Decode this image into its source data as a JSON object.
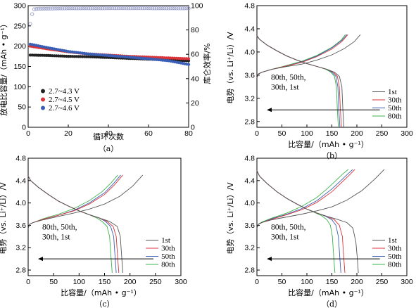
{
  "figure": {
    "panels": [
      {
        "id": "a",
        "caption": "（a）",
        "xlabel": "循环次数",
        "ylabel": "放电比容量/（mAh • g⁻¹）",
        "y2label": "库仑效率/%",
        "xticks": [
          "0",
          "20",
          "40",
          "60",
          "80"
        ],
        "yticks": [
          "0",
          "50",
          "100",
          "150",
          "200",
          "250",
          "300"
        ],
        "y2ticks": [
          "0",
          "20",
          "40",
          "60",
          "80",
          "100"
        ],
        "legend": [
          {
            "label": "2.7~4.3 V",
            "color": "#222222"
          },
          {
            "label": "2.7~4.5 V",
            "color": "#d9353b"
          },
          {
            "label": "2.7~4.6 V",
            "color": "#3a5fb5"
          }
        ]
      },
      {
        "id": "b",
        "caption": "（b）",
        "xlabel": "比容量/（mAh • g⁻¹）",
        "ylabel": "电势（vs. Li⁺/Li）/V",
        "xticks": [
          "0",
          "50",
          "100",
          "150",
          "200",
          "250",
          "300"
        ],
        "yticks": [
          "2.8",
          "3.2",
          "3.6",
          "4.0",
          "4.4",
          "4.8"
        ],
        "annotation": [
          "80th, 50th,",
          "30th, 1st"
        ],
        "legend": [
          "1st",
          "30th",
          "50th",
          "80th"
        ]
      },
      {
        "id": "c",
        "caption": "（c）",
        "xlabel": "比容量/（mAh • g⁻¹）",
        "ylabel": "电势（vs. Li⁺/Li）/V",
        "xticks": [
          "0",
          "50",
          "100",
          "150",
          "200",
          "250",
          "300"
        ],
        "yticks": [
          "2.8",
          "3.2",
          "3.6",
          "4.0",
          "4.4",
          "4.8"
        ],
        "annotation": [
          "80th, 50th,",
          "30th, 1st"
        ],
        "legend": [
          "1st",
          "30th",
          "50th",
          "80th"
        ]
      },
      {
        "id": "d",
        "caption": "（d）",
        "xlabel": "比容量/（mAh • g⁻¹）",
        "ylabel": "电势（vs. Li⁺/Li）/V",
        "xticks": [
          "0",
          "50",
          "100",
          "150",
          "200",
          "250",
          "300"
        ],
        "yticks": [
          "2.8",
          "3.2",
          "3.6",
          "4.0",
          "4.4",
          "4.8"
        ],
        "annotation": [
          "80th, 50th,",
          "30th, 1st"
        ],
        "legend": [
          "1st",
          "30th",
          "50th",
          "80th"
        ]
      }
    ]
  },
  "chart_data": [
    {
      "type": "scatter",
      "panel": "a",
      "xlim": [
        0,
        80
      ],
      "ylim": [
        0,
        300
      ],
      "y2lim": [
        0,
        100
      ],
      "series": [
        {
          "name": "2.7~4.3 V",
          "axis": "left",
          "color": "#222222",
          "x": [
            1,
            10,
            20,
            30,
            40,
            50,
            60,
            70,
            80
          ],
          "y": [
            178,
            177,
            175,
            174,
            172,
            170,
            168,
            166,
            164
          ]
        },
        {
          "name": "2.7~4.5 V",
          "axis": "left",
          "color": "#d9353b",
          "x": [
            1,
            10,
            20,
            30,
            40,
            50,
            60,
            70,
            80
          ],
          "y": [
            200,
            193,
            186,
            181,
            178,
            175,
            173,
            171,
            169
          ]
        },
        {
          "name": "2.7~4.6 V",
          "axis": "left",
          "color": "#3a5fb5",
          "x": [
            1,
            10,
            20,
            30,
            40,
            50,
            60,
            70,
            80
          ],
          "y": [
            205,
            196,
            187,
            181,
            177,
            173,
            169,
            164,
            155
          ]
        },
        {
          "axis": "right",
          "color": "#9aa0c8",
          "x": [
            1,
            2,
            3,
            5,
            10,
            20,
            40,
            60,
            80
          ],
          "y": [
            85,
            93,
            97,
            97.5,
            97.6,
            97.8,
            97.9,
            97.9,
            97.8
          ]
        }
      ]
    },
    {
      "type": "line",
      "panel": "b",
      "xlim": [
        0,
        300
      ],
      "ylim": [
        2.7,
        4.8
      ],
      "series": [
        {
          "name": "1st",
          "color": "#555555",
          "charge": {
            "x": [
              0,
              3,
              10,
              30,
              60,
              90,
              120,
              150,
              175,
              195,
              207
            ],
            "y": [
              3.55,
              3.62,
              3.65,
              3.7,
              3.75,
              3.79,
              3.86,
              3.95,
              4.06,
              4.18,
              4.3
            ]
          },
          "discharge": {
            "x": [
              0,
              5,
              20,
              40,
              60,
              80,
              100,
              120,
              140,
              155,
              165,
              170,
              172,
              174
            ],
            "y": [
              4.28,
              4.22,
              4.12,
              4.02,
              3.93,
              3.86,
              3.8,
              3.75,
              3.7,
              3.65,
              3.58,
              3.4,
              3.0,
              2.7
            ]
          }
        },
        {
          "name": "30th",
          "color": "#d9353b",
          "charge": {
            "x": [
              0,
              3,
              10,
              30,
              60,
              90,
              120,
              150,
              170,
              182
            ],
            "y": [
              3.55,
              3.62,
              3.65,
              3.7,
              3.76,
              3.82,
              3.92,
              4.05,
              4.18,
              4.3
            ]
          },
          "discharge": {
            "x": [
              0,
              5,
              20,
              40,
              60,
              80,
              100,
              120,
              140,
              153,
              161,
              165,
              167,
              169
            ],
            "y": [
              4.28,
              4.22,
              4.12,
              4.02,
              3.93,
              3.86,
              3.8,
              3.75,
              3.7,
              3.65,
              3.58,
              3.4,
              3.0,
              2.7
            ]
          }
        },
        {
          "name": "50th",
          "color": "#3a5fb5",
          "charge": {
            "x": [
              0,
              3,
              10,
              30,
              60,
              90,
              120,
              150,
              170,
              180
            ],
            "y": [
              3.55,
              3.62,
              3.65,
              3.7,
              3.76,
              3.83,
              3.93,
              4.07,
              4.2,
              4.3
            ]
          },
          "discharge": {
            "x": [
              0,
              5,
              20,
              40,
              60,
              80,
              100,
              120,
              140,
              150,
              158,
              162,
              164,
              166
            ],
            "y": [
              4.28,
              4.22,
              4.12,
              4.02,
              3.93,
              3.86,
              3.8,
              3.75,
              3.7,
              3.65,
              3.58,
              3.4,
              3.0,
              2.7
            ]
          }
        },
        {
          "name": "80th",
          "color": "#3cb44a",
          "charge": {
            "x": [
              0,
              3,
              10,
              30,
              60,
              90,
              120,
              150,
              168,
              177
            ],
            "y": [
              3.55,
              3.62,
              3.65,
              3.7,
              3.77,
              3.84,
              3.94,
              4.08,
              4.2,
              4.3
            ]
          },
          "discharge": {
            "x": [
              0,
              5,
              20,
              40,
              60,
              80,
              100,
              120,
              138,
              148,
              155,
              159,
              161,
              163
            ],
            "y": [
              4.28,
              4.22,
              4.12,
              4.02,
              3.93,
              3.86,
              3.8,
              3.75,
              3.7,
              3.65,
              3.58,
              3.4,
              3.0,
              2.7
            ]
          }
        }
      ]
    },
    {
      "type": "line",
      "panel": "c",
      "xlim": [
        0,
        300
      ],
      "ylim": [
        2.7,
        4.8
      ],
      "series": [
        {
          "name": "1st",
          "color": "#555555",
          "charge": {
            "x": [
              0,
              3,
              10,
              30,
              60,
              90,
              120,
              150,
              180,
              205,
              225
            ],
            "y": [
              3.55,
              3.62,
              3.65,
              3.7,
              3.76,
              3.82,
              3.89,
              3.98,
              4.12,
              4.3,
              4.5
            ]
          },
          "discharge": {
            "x": [
              0,
              5,
              20,
              40,
              60,
              80,
              100,
              120,
              140,
              160,
              175,
              181,
              184,
              186
            ],
            "y": [
              4.48,
              4.4,
              4.28,
              4.15,
              4.03,
              3.94,
              3.86,
              3.79,
              3.73,
              3.67,
              3.58,
              3.4,
              3.0,
              2.75
            ]
          }
        },
        {
          "name": "30th",
          "color": "#d9353b",
          "charge": {
            "x": [
              0,
              3,
              10,
              30,
              60,
              90,
              120,
              150,
              170,
              186
            ],
            "y": [
              3.55,
              3.62,
              3.65,
              3.71,
              3.78,
              3.86,
              3.98,
              4.15,
              4.33,
              4.5
            ]
          },
          "discharge": {
            "x": [
              0,
              5,
              20,
              40,
              60,
              80,
              100,
              120,
              140,
              155,
              167,
              173,
              176,
              178
            ],
            "y": [
              4.48,
              4.4,
              4.28,
              4.15,
              4.03,
              3.94,
              3.86,
              3.79,
              3.73,
              3.67,
              3.58,
              3.4,
              3.0,
              2.75
            ]
          }
        },
        {
          "name": "50th",
          "color": "#3a5fb5",
          "charge": {
            "x": [
              0,
              3,
              10,
              30,
              60,
              90,
              120,
              150,
              168,
              182
            ],
            "y": [
              3.55,
              3.62,
              3.65,
              3.71,
              3.78,
              3.87,
              4.0,
              4.18,
              4.35,
              4.5
            ]
          },
          "discharge": {
            "x": [
              0,
              5,
              20,
              40,
              60,
              80,
              100,
              120,
              140,
              152,
              162,
              168,
              171,
              173
            ],
            "y": [
              4.48,
              4.4,
              4.28,
              4.15,
              4.03,
              3.94,
              3.86,
              3.79,
              3.73,
              3.67,
              3.58,
              3.4,
              3.0,
              2.75
            ]
          }
        },
        {
          "name": "80th",
          "color": "#3cb44a",
          "charge": {
            "x": [
              0,
              3,
              10,
              30,
              60,
              90,
              120,
              145,
              162,
              176
            ],
            "y": [
              3.55,
              3.62,
              3.65,
              3.72,
              3.8,
              3.9,
              4.04,
              4.2,
              4.35,
              4.5
            ]
          },
          "discharge": {
            "x": [
              0,
              5,
              20,
              40,
              60,
              80,
              100,
              120,
              135,
              145,
              155,
              160,
              163,
              165
            ],
            "y": [
              4.48,
              4.4,
              4.28,
              4.15,
              4.03,
              3.94,
              3.86,
              3.79,
              3.73,
              3.67,
              3.58,
              3.4,
              3.0,
              2.75
            ]
          }
        }
      ]
    },
    {
      "type": "line",
      "panel": "d",
      "xlim": [
        0,
        300
      ],
      "ylim": [
        2.7,
        4.8
      ],
      "series": [
        {
          "name": "1st",
          "color": "#555555",
          "charge": {
            "x": [
              0,
              3,
              10,
              30,
              60,
              90,
              120,
              150,
              180,
              210,
              235,
              255
            ],
            "y": [
              3.55,
              3.62,
              3.65,
              3.7,
              3.75,
              3.8,
              3.86,
              3.93,
              4.05,
              4.22,
              4.42,
              4.6
            ]
          },
          "discharge": {
            "x": [
              0,
              5,
              20,
              40,
              60,
              80,
              100,
              120,
              140,
              160,
              180,
              192,
              198,
              201,
              203
            ],
            "y": [
              4.58,
              4.48,
              4.35,
              4.2,
              4.08,
              3.98,
              3.89,
              3.82,
              3.76,
              3.71,
              3.65,
              3.55,
              3.3,
              3.0,
              2.75
            ]
          }
        },
        {
          "name": "30th",
          "color": "#d9353b",
          "charge": {
            "x": [
              0,
              3,
              10,
              30,
              60,
              90,
              120,
              150,
              170,
              185,
              196
            ],
            "y": [
              3.55,
              3.62,
              3.65,
              3.71,
              3.79,
              3.88,
              4.01,
              4.2,
              4.37,
              4.5,
              4.6
            ]
          },
          "discharge": {
            "x": [
              0,
              5,
              20,
              40,
              60,
              80,
              100,
              120,
              140,
              155,
              165,
              171,
              174,
              176
            ],
            "y": [
              4.58,
              4.48,
              4.35,
              4.2,
              4.08,
              3.98,
              3.89,
              3.82,
              3.76,
              3.7,
              3.6,
              3.4,
              3.0,
              2.75
            ]
          }
        },
        {
          "name": "50th",
          "color": "#3a5fb5",
          "charge": {
            "x": [
              0,
              3,
              10,
              30,
              60,
              90,
              120,
              150,
              168,
              182,
              192
            ],
            "y": [
              3.55,
              3.62,
              3.65,
              3.72,
              3.8,
              3.9,
              4.04,
              4.25,
              4.4,
              4.52,
              4.6
            ]
          },
          "discharge": {
            "x": [
              0,
              5,
              20,
              40,
              60,
              80,
              100,
              120,
              138,
              150,
              158,
              163,
              166,
              168
            ],
            "y": [
              4.58,
              4.48,
              4.35,
              4.2,
              4.08,
              3.98,
              3.89,
              3.82,
              3.76,
              3.7,
              3.6,
              3.4,
              3.0,
              2.75
            ]
          }
        },
        {
          "name": "80th",
          "color": "#3cb44a",
          "charge": {
            "x": [
              0,
              3,
              10,
              30,
              60,
              90,
              120,
              140,
              158,
              172,
              183
            ],
            "y": [
              3.55,
              3.62,
              3.66,
              3.73,
              3.82,
              3.94,
              4.1,
              4.25,
              4.4,
              4.52,
              4.6
            ]
          },
          "discharge": {
            "x": [
              0,
              5,
              20,
              40,
              60,
              80,
              100,
              115,
              130,
              140,
              147,
              151,
              154,
              156
            ],
            "y": [
              4.58,
              4.48,
              4.35,
              4.2,
              4.08,
              3.98,
              3.89,
              3.83,
              3.77,
              3.7,
              3.6,
              3.4,
              3.0,
              2.75
            ]
          }
        }
      ]
    }
  ]
}
